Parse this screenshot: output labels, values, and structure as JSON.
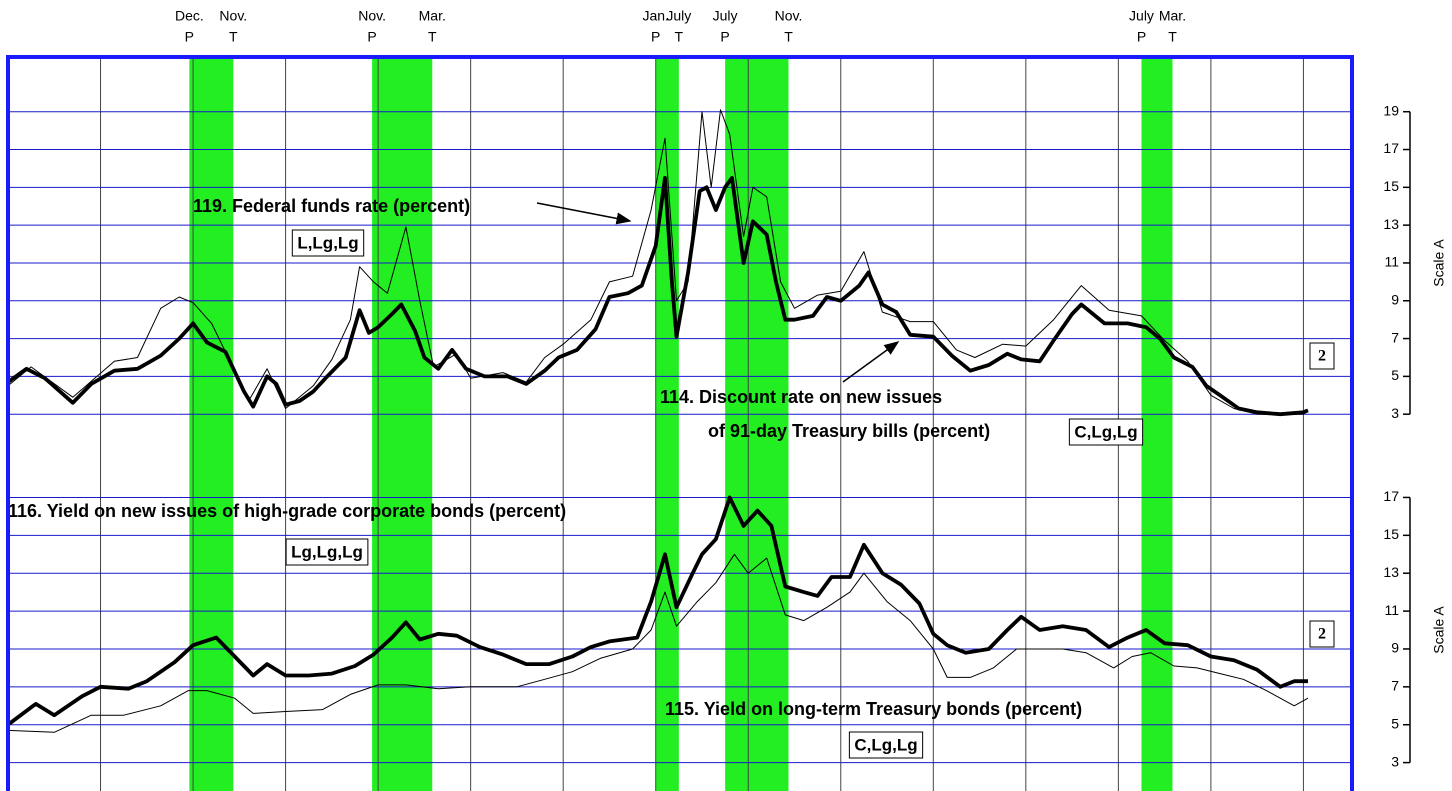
{
  "chart_data": [
    {
      "type": "line",
      "xlim": [
        1966,
        1995.05
      ],
      "ylim": [
        1,
        22
      ],
      "xticks": [
        1968,
        1970,
        1972,
        1974,
        1976,
        1978,
        1980,
        1982,
        1984,
        1986,
        1988,
        1990,
        1992,
        1994
      ],
      "yticks": [
        3,
        5,
        7,
        9,
        11,
        13,
        15,
        17,
        19
      ],
      "grid": true,
      "y_axis_label": "Scale A",
      "note_box": "2",
      "recession_color": "#22ee22",
      "peak_marker": "P",
      "trough_marker": "T",
      "recessions": [
        {
          "start": 1969.92,
          "end": 1970.87,
          "peak_month": "Dec.",
          "trough_month": "Nov."
        },
        {
          "start": 1973.87,
          "end": 1975.17,
          "peak_month": "Nov.",
          "trough_month": "Mar."
        },
        {
          "start": 1980.0,
          "end": 1980.5,
          "peak_month": "Jan.",
          "trough_month": "July"
        },
        {
          "start": 1981.5,
          "end": 1982.87,
          "peak_month": "July",
          "trough_month": "Nov."
        },
        {
          "start": 1990.5,
          "end": 1991.17,
          "peak_month": "July",
          "trough_month": "Mar."
        }
      ],
      "series": [
        {
          "label_lines": [
            "119. Federal funds rate (percent)"
          ],
          "code": "L,Lg,Lg",
          "color": "#000000",
          "width": "thin",
          "x": [
            1966.0,
            1966.5,
            1967.4,
            1968.3,
            1968.8,
            1969.3,
            1969.7,
            1970.0,
            1970.4,
            1970.9,
            1971.2,
            1971.6,
            1972.0,
            1972.6,
            1973.0,
            1973.4,
            1973.6,
            1973.9,
            1974.2,
            1974.6,
            1974.9,
            1975.2,
            1975.7,
            1976.0,
            1976.7,
            1977.2,
            1977.6,
            1978.0,
            1978.6,
            1979.0,
            1979.5,
            1979.9,
            1980.2,
            1980.45,
            1980.7,
            1981.0,
            1981.2,
            1981.4,
            1981.6,
            1981.9,
            1982.1,
            1982.4,
            1982.7,
            1983.0,
            1983.5,
            1984.0,
            1984.5,
            1984.9,
            1985.5,
            1986.0,
            1986.5,
            1986.9,
            1987.5,
            1988.0,
            1988.6,
            1989.2,
            1989.8,
            1990.5,
            1991.0,
            1991.5,
            1992.0,
            1992.5,
            1993.0,
            1994.0,
            1994.1
          ],
          "values": [
            4.5,
            5.5,
            3.9,
            5.8,
            6.0,
            8.6,
            9.2,
            8.9,
            7.8,
            5.3,
            3.7,
            5.4,
            3.3,
            4.5,
            5.9,
            8.0,
            10.8,
            10.0,
            9.4,
            12.9,
            9.0,
            5.5,
            6.2,
            4.9,
            5.2,
            4.7,
            6.0,
            6.7,
            8.0,
            10.0,
            10.3,
            13.8,
            17.6,
            9.0,
            10.0,
            19.0,
            15.0,
            19.1,
            17.8,
            12.4,
            15.0,
            14.5,
            10.0,
            8.6,
            9.3,
            9.5,
            11.6,
            8.4,
            7.9,
            7.9,
            6.4,
            6.0,
            6.7,
            6.6,
            8.0,
            9.8,
            8.5,
            8.2,
            6.9,
            5.8,
            4.0,
            3.3,
            3.0,
            3.0,
            3.2
          ]
        },
        {
          "label_lines": [
            "114. Discount rate on new issues",
            "of 91-day Treasury bills (percent)"
          ],
          "code": "C,Lg,Lg",
          "color": "#000000",
          "width": "thick",
          "x": [
            1966.0,
            1966.4,
            1966.8,
            1967.4,
            1967.8,
            1968.3,
            1968.8,
            1969.3,
            1969.7,
            1970.0,
            1970.3,
            1970.7,
            1971.1,
            1971.3,
            1971.6,
            1971.8,
            1972.0,
            1972.3,
            1972.6,
            1972.9,
            1973.3,
            1973.6,
            1973.8,
            1974.0,
            1974.3,
            1974.5,
            1974.8,
            1975.0,
            1975.3,
            1975.6,
            1975.9,
            1976.3,
            1976.8,
            1977.2,
            1977.6,
            1977.9,
            1978.3,
            1978.7,
            1979.0,
            1979.4,
            1979.7,
            1980.0,
            1980.2,
            1980.35,
            1980.45,
            1980.7,
            1980.95,
            1981.1,
            1981.3,
            1981.5,
            1981.65,
            1981.9,
            1982.1,
            1982.4,
            1982.6,
            1982.8,
            1983.0,
            1983.4,
            1983.7,
            1984.0,
            1984.4,
            1984.6,
            1984.9,
            1985.2,
            1985.5,
            1986.0,
            1986.4,
            1986.8,
            1987.2,
            1987.6,
            1987.9,
            1988.3,
            1988.6,
            1989.0,
            1989.2,
            1989.7,
            1990.2,
            1990.6,
            1990.9,
            1991.2,
            1991.6,
            1991.9,
            1992.2,
            1992.6,
            1993.0,
            1993.5,
            1994.0,
            1994.1
          ],
          "values": [
            4.7,
            5.4,
            4.9,
            3.6,
            4.6,
            5.3,
            5.4,
            6.1,
            7.0,
            7.8,
            6.8,
            6.3,
            4.2,
            3.4,
            5.0,
            4.6,
            3.5,
            3.7,
            4.2,
            5.0,
            6.0,
            8.5,
            7.3,
            7.6,
            8.3,
            8.8,
            7.4,
            6.0,
            5.4,
            6.4,
            5.4,
            5.0,
            5.0,
            4.6,
            5.3,
            6.0,
            6.4,
            7.5,
            9.2,
            9.4,
            9.8,
            11.9,
            15.5,
            10.0,
            7.1,
            10.5,
            14.8,
            15.0,
            13.8,
            15.0,
            15.5,
            11.0,
            13.2,
            12.5,
            10.0,
            8.0,
            8.0,
            8.2,
            9.2,
            9.0,
            9.8,
            10.5,
            8.8,
            8.4,
            7.2,
            7.1,
            6.1,
            5.3,
            5.6,
            6.2,
            5.9,
            5.8,
            6.9,
            8.3,
            8.8,
            7.8,
            7.8,
            7.6,
            7.0,
            6.0,
            5.5,
            4.5,
            4.0,
            3.3,
            3.1,
            3.0,
            3.1,
            3.2
          ]
        }
      ]
    },
    {
      "type": "line",
      "xlim": [
        1966,
        1995.05
      ],
      "ylim": [
        1.5,
        19.4
      ],
      "xticks": [
        1968,
        1970,
        1972,
        1974,
        1976,
        1978,
        1980,
        1982,
        1984,
        1986,
        1988,
        1990,
        1992,
        1994
      ],
      "yticks": [
        3,
        5,
        7,
        9,
        11,
        13,
        15,
        17
      ],
      "grid": true,
      "y_axis_label": "Scale A",
      "note_box": "2",
      "series": [
        {
          "label_lines": [
            "116. Yield on new issues of high-grade corporate bonds (percent)"
          ],
          "code": "Lg,Lg,Lg",
          "color": "#000000",
          "width": "thick",
          "x": [
            1966.0,
            1966.6,
            1967.0,
            1967.6,
            1968.0,
            1968.6,
            1969.0,
            1969.6,
            1970.0,
            1970.5,
            1970.9,
            1971.3,
            1971.6,
            1972.0,
            1972.5,
            1973.0,
            1973.5,
            1973.9,
            1974.3,
            1974.6,
            1974.9,
            1975.3,
            1975.7,
            1976.2,
            1976.7,
            1977.2,
            1977.7,
            1978.2,
            1978.6,
            1979.0,
            1979.6,
            1979.9,
            1980.2,
            1980.45,
            1980.8,
            1981.0,
            1981.3,
            1981.6,
            1981.9,
            1982.2,
            1982.5,
            1982.8,
            1983.2,
            1983.5,
            1983.8,
            1984.2,
            1984.5,
            1984.9,
            1985.3,
            1985.7,
            1986.0,
            1986.3,
            1986.7,
            1987.2,
            1987.6,
            1987.9,
            1988.3,
            1988.8,
            1989.3,
            1989.8,
            1990.2,
            1990.6,
            1991.0,
            1991.5,
            1992.0,
            1992.5,
            1993.0,
            1993.5,
            1993.8,
            1994.1
          ],
          "values": [
            5.0,
            6.1,
            5.5,
            6.5,
            7.0,
            6.9,
            7.3,
            8.3,
            9.2,
            9.6,
            8.6,
            7.6,
            8.2,
            7.6,
            7.6,
            7.7,
            8.1,
            8.7,
            9.6,
            10.4,
            9.5,
            9.8,
            9.7,
            9.1,
            8.7,
            8.2,
            8.2,
            8.6,
            9.1,
            9.4,
            9.6,
            11.5,
            14.0,
            11.2,
            13.0,
            14.0,
            14.8,
            17.0,
            15.5,
            16.3,
            15.5,
            12.3,
            12.0,
            11.8,
            12.8,
            12.8,
            14.5,
            13.0,
            12.4,
            11.4,
            9.8,
            9.2,
            8.8,
            9.0,
            10.0,
            10.7,
            10.0,
            10.2,
            10.0,
            9.1,
            9.6,
            10.0,
            9.3,
            9.2,
            8.6,
            8.4,
            7.9,
            7.0,
            7.3,
            7.3
          ]
        },
        {
          "label_lines": [
            "115. Yield on long-term Treasury bonds (percent)"
          ],
          "code": "C,Lg,Lg",
          "color": "#000000",
          "width": "thin",
          "x": [
            1966.0,
            1967.0,
            1967.8,
            1968.5,
            1969.3,
            1969.9,
            1970.3,
            1970.9,
            1971.3,
            1972.0,
            1972.8,
            1973.4,
            1974.0,
            1974.6,
            1975.3,
            1976.0,
            1977.0,
            1977.6,
            1978.2,
            1978.8,
            1979.5,
            1979.9,
            1980.2,
            1980.45,
            1980.9,
            1981.3,
            1981.7,
            1982.0,
            1982.4,
            1982.8,
            1983.2,
            1983.7,
            1984.2,
            1984.5,
            1985.0,
            1985.5,
            1986.0,
            1986.3,
            1986.8,
            1987.3,
            1987.8,
            1988.3,
            1988.8,
            1989.3,
            1989.9,
            1990.3,
            1990.7,
            1991.2,
            1991.7,
            1992.2,
            1992.7,
            1993.2,
            1993.8,
            1994.1
          ],
          "values": [
            4.7,
            4.6,
            5.5,
            5.5,
            6.0,
            6.8,
            6.8,
            6.4,
            5.6,
            5.7,
            5.8,
            6.6,
            7.1,
            7.1,
            6.9,
            7.0,
            7.0,
            7.4,
            7.8,
            8.5,
            9.0,
            10.0,
            12.0,
            10.2,
            11.5,
            12.5,
            14.0,
            13.0,
            13.8,
            10.8,
            10.5,
            11.2,
            12.0,
            13.0,
            11.5,
            10.5,
            9.0,
            7.5,
            7.5,
            8.0,
            9.0,
            9.0,
            9.0,
            8.8,
            8.0,
            8.6,
            8.8,
            8.1,
            8.0,
            7.7,
            7.4,
            6.8,
            6.0,
            6.4
          ]
        }
      ]
    }
  ]
}
